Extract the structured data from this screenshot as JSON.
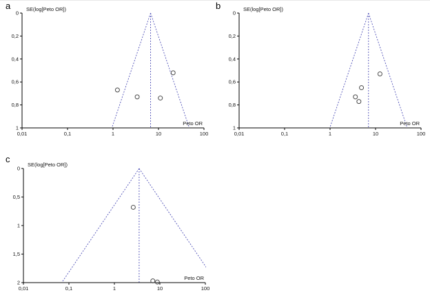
{
  "figure": {
    "background": "#ffffff",
    "funnel_line_color": "#5152b8",
    "axis_color": "#000000",
    "point_color": "#4a4a4a"
  },
  "chart_data": [
    {
      "type": "scatter",
      "subtype": "funnel-plot",
      "panel_label": "a",
      "title": "SE(log[Peto OR])",
      "xlabel": "Peto OR",
      "x_scale": "log",
      "xlim": [
        0.01,
        100
      ],
      "x_tick_values": [
        0.01,
        0.1,
        1,
        10,
        100
      ],
      "x_tick_labels": [
        "0,01",
        "0,1",
        "1",
        "10",
        "100"
      ],
      "ylim": [
        0,
        1
      ],
      "y_axis_direction": "reversed-zero-at-top",
      "y_tick_values": [
        0,
        0.2,
        0.4,
        0.6,
        0.8,
        1
      ],
      "y_tick_labels": [
        "0",
        "0,2",
        "0,4",
        "0,6",
        "0,8",
        "1"
      ],
      "funnel_center": 6.7,
      "pseudo_95ci_funnel": true,
      "points": [
        {
          "x": 1.25,
          "se": 0.67
        },
        {
          "x": 3.4,
          "se": 0.73
        },
        {
          "x": 11,
          "se": 0.74
        },
        {
          "x": 21,
          "se": 0.52
        }
      ]
    },
    {
      "type": "scatter",
      "subtype": "funnel-plot",
      "panel_label": "b",
      "title": "SE(log[Peto OR])",
      "xlabel": "Peto OR",
      "x_scale": "log",
      "xlim": [
        0.01,
        100
      ],
      "x_tick_values": [
        0.01,
        0.1,
        1,
        10,
        100
      ],
      "x_tick_labels": [
        "0,01",
        "0,1",
        "1",
        "10",
        "100"
      ],
      "ylim": [
        0,
        1
      ],
      "y_axis_direction": "reversed-zero-at-top",
      "y_tick_values": [
        0,
        0.2,
        0.4,
        0.6,
        0.8,
        1
      ],
      "y_tick_labels": [
        "0",
        "0,2",
        "0,4",
        "0,6",
        "0,8",
        "1"
      ],
      "funnel_center": 7,
      "pseudo_95ci_funnel": true,
      "points": [
        {
          "x": 3.6,
          "se": 0.73
        },
        {
          "x": 4.3,
          "se": 0.77
        },
        {
          "x": 4.9,
          "se": 0.65
        },
        {
          "x": 12.5,
          "se": 0.53
        }
      ]
    },
    {
      "type": "scatter",
      "subtype": "funnel-plot",
      "panel_label": "c",
      "title": "SE(log[Peto OR])",
      "xlabel": "Peto OR",
      "x_scale": "log",
      "xlim": [
        0.01,
        100
      ],
      "x_tick_values": [
        0.01,
        0.1,
        1,
        10,
        100
      ],
      "x_tick_labels": [
        "0,01",
        "0,1",
        "1",
        "10",
        "100"
      ],
      "ylim": [
        0,
        2
      ],
      "y_axis_direction": "reversed-zero-at-top",
      "y_tick_values": [
        0,
        0.5,
        1,
        1.5,
        2
      ],
      "y_tick_labels": [
        "0",
        "0,5",
        "1",
        "1,5",
        "2"
      ],
      "funnel_center": 3.5,
      "pseudo_95ci_funnel": true,
      "points": [
        {
          "x": 2.6,
          "se": 0.68
        },
        {
          "x": 7,
          "se": 1.97
        },
        {
          "x": 8.8,
          "se": 1.99
        }
      ]
    }
  ]
}
